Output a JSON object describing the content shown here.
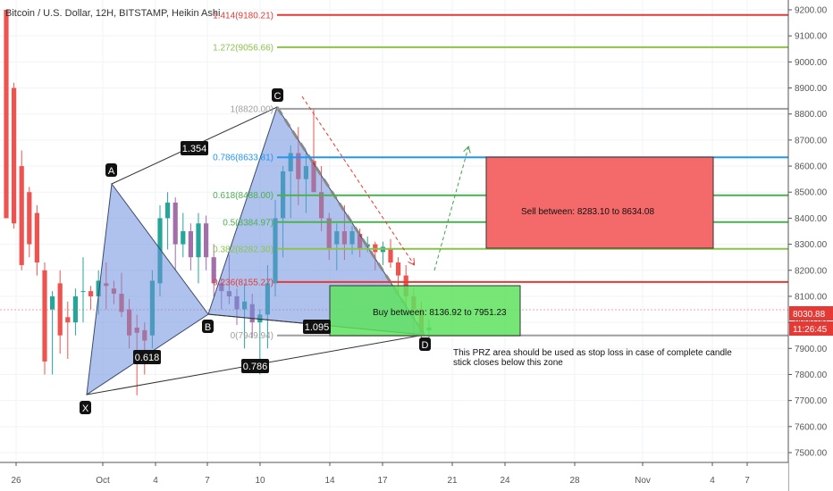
{
  "chart_data": {
    "type": "candlestick",
    "title": "Bitcoin / U.S. Dollar, 12H, BITSTAMP, Heikin Ashi",
    "x_ticks": [
      "26",
      "Oct",
      "4",
      "7",
      "10",
      "14",
      "17",
      "21",
      "24",
      "28",
      "Nov",
      "4",
      "7"
    ],
    "y_ticks": [
      "9200.00",
      "9100.00",
      "9000.00",
      "8900.00",
      "8800.00",
      "8700.00",
      "8600.00",
      "8500.00",
      "8400.00",
      "8300.00",
      "8200.00",
      "8100.00",
      "8000.00",
      "7900.00",
      "7800.00",
      "7700.00",
      "7600.00",
      "7500.00"
    ],
    "ylim": [
      7430,
      9230
    ],
    "price_tags": [
      {
        "text": "8030.88",
        "value": 8030.88,
        "color": "#e53935"
      },
      {
        "text": "11:26:45",
        "value": 7980,
        "color": "#e53935"
      }
    ],
    "fib_levels": [
      {
        "label": "1.414(9180.21)",
        "value": 9180.21,
        "color": "#e53935"
      },
      {
        "label": "1.272(9056.66)",
        "value": 9056.66,
        "color": "#8bc34a"
      },
      {
        "label": "1(8820.00)",
        "value": 8820.0,
        "color": "#9e9e9e"
      },
      {
        "label": "0.786(8633.81)",
        "value": 8633.81,
        "color": "#2196f3"
      },
      {
        "label": "0.618(8488.00)",
        "value": 8488.0,
        "color": "#4caf50"
      },
      {
        "label": "0.5(8384.97)",
        "value": 8384.97,
        "color": "#4caf50"
      },
      {
        "label": "0.382(8282.30)",
        "value": 8282.3,
        "color": "#8bc34a"
      },
      {
        "label": "0.236(8155.27)",
        "value": 8155.27,
        "color": "#e53935"
      },
      {
        "label": "0(7949.94)",
        "value": 7949.94,
        "color": "#9e9e9e"
      }
    ],
    "pattern_points": [
      {
        "label": "X",
        "date": "Sep 30",
        "price": 7720
      },
      {
        "label": "A",
        "date": "Oct 1",
        "price": 8530
      },
      {
        "label": "B",
        "date": "Oct 7",
        "price": 8000
      },
      {
        "label": "C",
        "date": "Oct 11",
        "price": 8820
      },
      {
        "label": "D",
        "date": "Oct 19",
        "price": 7949.94
      }
    ],
    "ratios": [
      "1.354",
      "0.618",
      "0.786",
      "1.095"
    ],
    "sell_zone": {
      "text": "Sell between: 8283.10 to 8634.08",
      "low": 8283.1,
      "high": 8634.08
    },
    "buy_zone": {
      "text": "Buy between: 8136.92 to 7951.23",
      "low": 7951.23,
      "high": 8136.92
    },
    "note_lines": [
      "This PRZ area should be used as stop loss in case of complete candle",
      "stick closes below this zone"
    ],
    "candles": [
      [
        9200,
        9200,
        8400,
        8400
      ],
      [
        8900,
        8920,
        8360,
        8380
      ],
      [
        8600,
        8660,
        8200,
        8220
      ],
      [
        8500,
        8520,
        8250,
        8300
      ],
      [
        8420,
        8450,
        8180,
        8230
      ],
      [
        8200,
        8230,
        7800,
        7850
      ],
      [
        8050,
        8120,
        7800,
        8100
      ],
      [
        8150,
        8200,
        7880,
        7950
      ],
      [
        8020,
        8080,
        7860,
        8000
      ],
      [
        8000,
        8130,
        7950,
        8100
      ],
      [
        8120,
        8250,
        8000,
        8120
      ],
      [
        8120,
        8140,
        8050,
        8100
      ],
      [
        8100,
        8200,
        8030,
        8160
      ],
      [
        8150,
        8230,
        8050,
        8140
      ],
      [
        8130,
        8160,
        8070,
        8110
      ],
      [
        8110,
        8190,
        8020,
        8040
      ],
      [
        8050,
        8090,
        7900,
        7950
      ],
      [
        7980,
        8030,
        7720,
        7960
      ],
      [
        7970,
        8000,
        7800,
        7930
      ],
      [
        7950,
        8200,
        7900,
        8160
      ],
      [
        8150,
        8450,
        8100,
        8400
      ],
      [
        8400,
        8500,
        8280,
        8460
      ],
      [
        8460,
        8480,
        8200,
        8300
      ],
      [
        8300,
        8420,
        8250,
        8350
      ],
      [
        8350,
        8380,
        8200,
        8250
      ],
      [
        8250,
        8420,
        8150,
        8380
      ],
      [
        8380,
        8410,
        8200,
        8250
      ],
      [
        8250,
        8300,
        8100,
        8150
      ],
      [
        8150,
        8170,
        8050,
        8120
      ],
      [
        8120,
        8260,
        8070,
        8100
      ],
      [
        8100,
        8130,
        7990,
        8050
      ],
      [
        8050,
        8150,
        7900,
        8080
      ],
      [
        8070,
        8110,
        7940,
        8000
      ],
      [
        8000,
        8050,
        7800,
        8030
      ],
      [
        8030,
        8220,
        7900,
        8150
      ],
      [
        8150,
        8470,
        8100,
        8400
      ],
      [
        8400,
        8600,
        8250,
        8580
      ],
      [
        8580,
        8680,
        8400,
        8650
      ],
      [
        8650,
        8750,
        8450,
        8550
      ],
      [
        8550,
        8660,
        8420,
        8600
      ],
      [
        8620,
        8820,
        8500,
        8500
      ],
      [
        8500,
        8600,
        8350,
        8400
      ],
      [
        8400,
        8420,
        8240,
        8280
      ],
      [
        8300,
        8380,
        8200,
        8350
      ],
      [
        8350,
        8450,
        8240,
        8300
      ],
      [
        8300,
        8370,
        8260,
        8350
      ],
      [
        8340,
        8360,
        8250,
        8280
      ],
      [
        8290,
        8330,
        8270,
        8300
      ],
      [
        8300,
        8310,
        8200,
        8270
      ],
      [
        8270,
        8310,
        8220,
        8290
      ],
      [
        8280,
        8320,
        8210,
        8230
      ],
      [
        8230,
        8250,
        8100,
        8180
      ],
      [
        8180,
        8220,
        8050,
        8100
      ],
      [
        8100,
        8130,
        7950,
        8050
      ],
      [
        8050,
        8080,
        7920,
        7960
      ],
      [
        7970,
        8010,
        7920,
        7980
      ]
    ]
  }
}
